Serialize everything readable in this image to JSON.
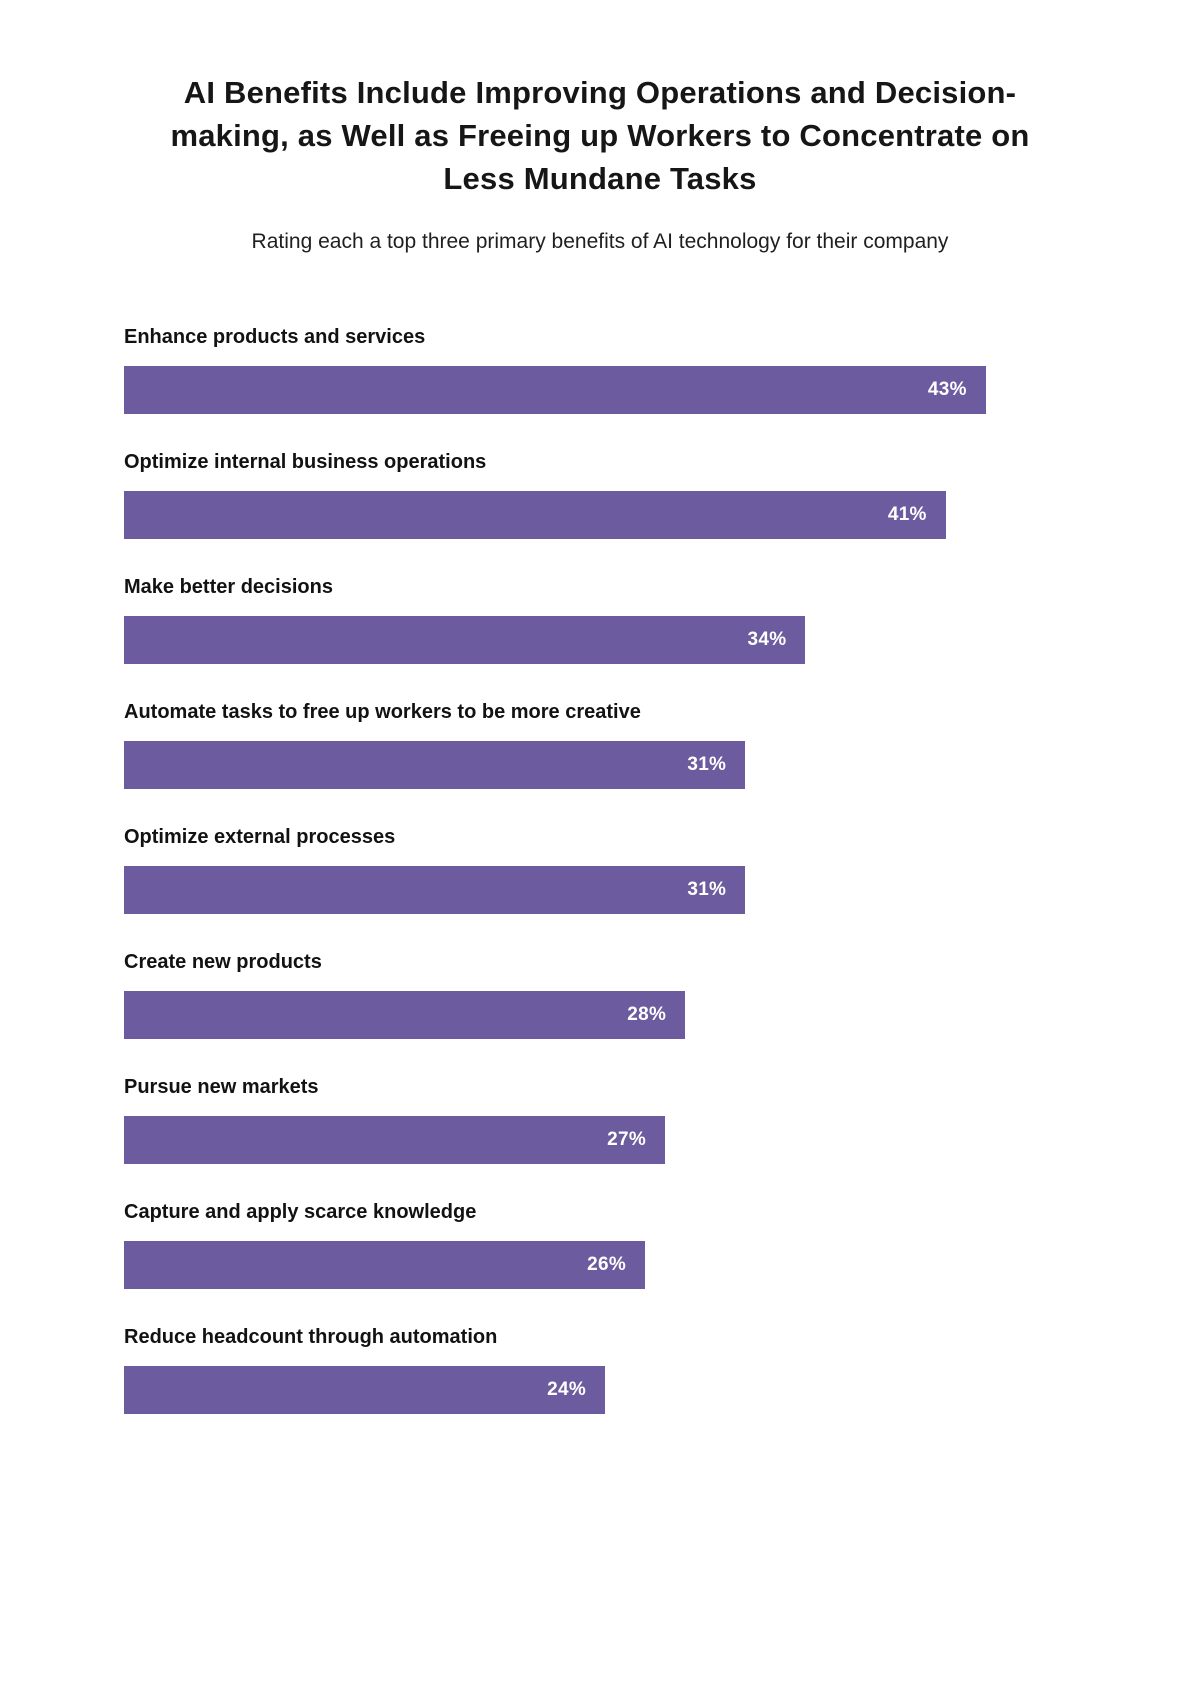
{
  "chart_data": {
    "type": "bar",
    "orientation": "horizontal",
    "title": "AI Benefits Include Improving Operations and Decision-making, as Well as Freeing up Workers to Concentrate on Less Mundane Tasks",
    "subtitle": "Rating each a top three primary benefits of AI technology for their company",
    "categories": [
      "Enhance products and services",
      "Optimize internal business operations",
      "Make better decisions",
      "Automate tasks to free up workers to be more creative",
      "Optimize external processes",
      "Create new products",
      "Pursue new markets",
      "Capture and apply scarce knowledge",
      "Reduce headcount through automation"
    ],
    "values": [
      43,
      41,
      34,
      31,
      31,
      28,
      27,
      26,
      24
    ],
    "value_suffix": "%",
    "xlim": [
      0,
      47.5
    ],
    "grid": false,
    "legend": false,
    "bar_color": "#6c5b9e",
    "value_label_color": "#ffffff",
    "value_label_position": "inside-end",
    "category_label_position": "above-bar"
  }
}
